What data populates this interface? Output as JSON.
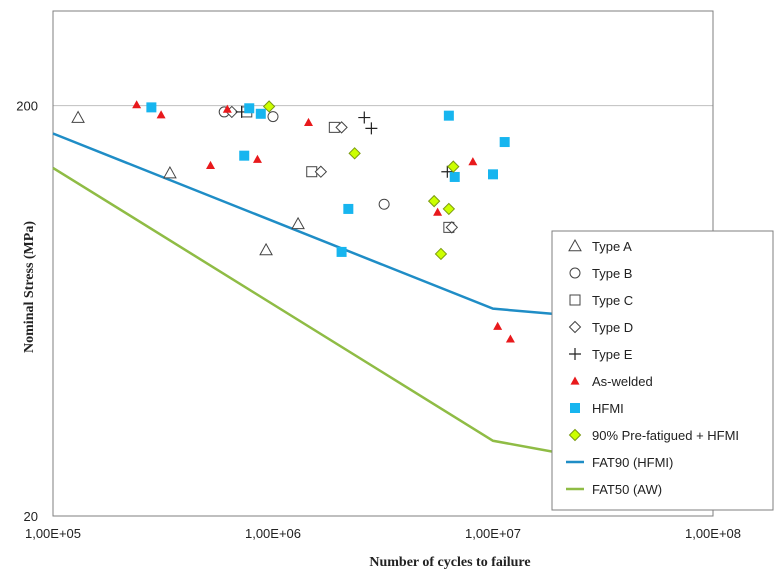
{
  "chart_data": {
    "type": "scatter",
    "x_scale": "log",
    "y_scale": "log",
    "xlim": [
      100000,
      100000000
    ],
    "ylim": [
      20,
      340
    ],
    "xlabel": "Number of cycles to failure",
    "ylabel": "Nominal Stress (MPa)",
    "x_ticks": [
      {
        "value": 100000,
        "label": "1,00E+05"
      },
      {
        "value": 1000000,
        "label": "1,00E+06"
      },
      {
        "value": 10000000,
        "label": "1,00E+07"
      },
      {
        "value": 100000000,
        "label": "1,00E+08"
      }
    ],
    "y_ticks": [
      {
        "value": 20,
        "label": "20"
      },
      {
        "value": 200,
        "label": "200"
      }
    ],
    "gridlines": [
      200
    ],
    "legend_position": "right",
    "series": [
      {
        "name": "Type A",
        "marker": "triangle-open",
        "color": "#444444",
        "points": [
          [
            130000,
            187
          ],
          [
            340000,
            137
          ],
          [
            930000,
            89
          ],
          [
            1300000,
            103
          ]
        ]
      },
      {
        "name": "Type B",
        "marker": "circle-open",
        "color": "#444444",
        "points": [
          [
            600000,
            193
          ],
          [
            1000000,
            188
          ],
          [
            3200000,
            115
          ]
        ]
      },
      {
        "name": "Type C",
        "marker": "square-open",
        "color": "#444444",
        "points": [
          [
            760000,
            193
          ],
          [
            1500000,
            138
          ],
          [
            1900000,
            177
          ],
          [
            6300000,
            101
          ]
        ]
      },
      {
        "name": "Type D",
        "marker": "diamond-open",
        "color": "#444444",
        "points": [
          [
            650000,
            193
          ],
          [
            1650000,
            138
          ],
          [
            2050000,
            177
          ],
          [
            6500000,
            101
          ]
        ]
      },
      {
        "name": "Type E",
        "marker": "plus",
        "color": "#222222",
        "points": [
          [
            720000,
            193
          ],
          [
            2600000,
            187
          ],
          [
            2800000,
            176
          ],
          [
            6200000,
            138
          ]
        ]
      },
      {
        "name": "As-welded",
        "marker": "triangle-filled",
        "color": "#e8191c",
        "points": [
          [
            240000,
            201
          ],
          [
            310000,
            190
          ],
          [
            520000,
            143
          ],
          [
            620000,
            196
          ],
          [
            850000,
            148
          ],
          [
            1450000,
            182
          ],
          [
            5600000,
            110
          ],
          [
            8100000,
            146
          ],
          [
            10500000,
            58
          ],
          [
            12000000,
            54
          ]
        ]
      },
      {
        "name": "HFMI",
        "marker": "square-filled",
        "color": "#17b5ef",
        "points": [
          [
            280000,
            198
          ],
          [
            740000,
            151
          ],
          [
            780000,
            197
          ],
          [
            880000,
            191
          ],
          [
            2050000,
            88
          ],
          [
            2200000,
            112
          ],
          [
            6300000,
            189
          ],
          [
            6700000,
            134
          ],
          [
            10000000,
            136
          ],
          [
            11300000,
            163
          ]
        ]
      },
      {
        "name": "90% Pre-fatigued + HFMI",
        "marker": "diamond-filled",
        "color": "#ccff00",
        "stroke": "#7a9a10",
        "points": [
          [
            960000,
            199
          ],
          [
            2350000,
            153
          ],
          [
            5400000,
            117
          ],
          [
            5800000,
            87
          ],
          [
            6300000,
            112
          ],
          [
            6600000,
            142
          ]
        ]
      },
      {
        "name": "FAT90 (HFMI)",
        "type": "line",
        "color": "#1f8dc6",
        "points": [
          [
            100000,
            171
          ],
          [
            10000000,
            64
          ],
          [
            20000000,
            62
          ]
        ]
      },
      {
        "name": "FAT50 (AW)",
        "type": "line",
        "color": "#8fbc45",
        "points": [
          [
            100000,
            141
          ],
          [
            10000000,
            30.5
          ],
          [
            20000000,
            28.5
          ]
        ]
      }
    ]
  }
}
